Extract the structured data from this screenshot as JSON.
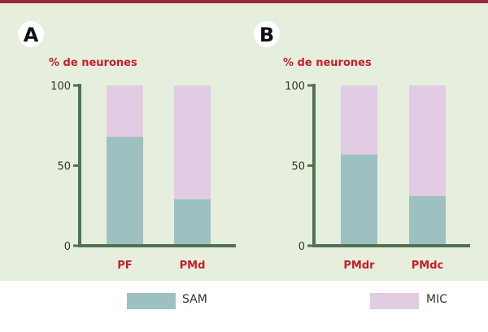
{
  "colors": {
    "top_rule": "#9b2a3a",
    "panel_bg": "#e6efdd",
    "axis": "#4f7252",
    "accent_text": "#c41f2a",
    "sam": "#9dc1c0",
    "mic": "#e1cce3"
  },
  "legend": {
    "sam_label": "SAM",
    "mic_label": "MIC"
  },
  "chart_data": [
    {
      "type": "bar",
      "stacked": true,
      "panel_label": "A",
      "ylabel": "% de neurones",
      "ylim": [
        0,
        100
      ],
      "yticks": [
        0,
        50,
        100
      ],
      "categories": [
        "PF",
        "PMd"
      ],
      "series": [
        {
          "name": "SAM",
          "values": [
            68,
            29
          ]
        },
        {
          "name": "MIC",
          "values": [
            32,
            71
          ]
        }
      ]
    },
    {
      "type": "bar",
      "stacked": true,
      "panel_label": "B",
      "ylabel": "% de neurones",
      "ylim": [
        0,
        100
      ],
      "yticks": [
        0,
        50,
        100
      ],
      "categories": [
        "PMdr",
        "PMdc"
      ],
      "series": [
        {
          "name": "SAM",
          "values": [
            57,
            31
          ]
        },
        {
          "name": "MIC",
          "values": [
            43,
            69
          ]
        }
      ]
    }
  ]
}
